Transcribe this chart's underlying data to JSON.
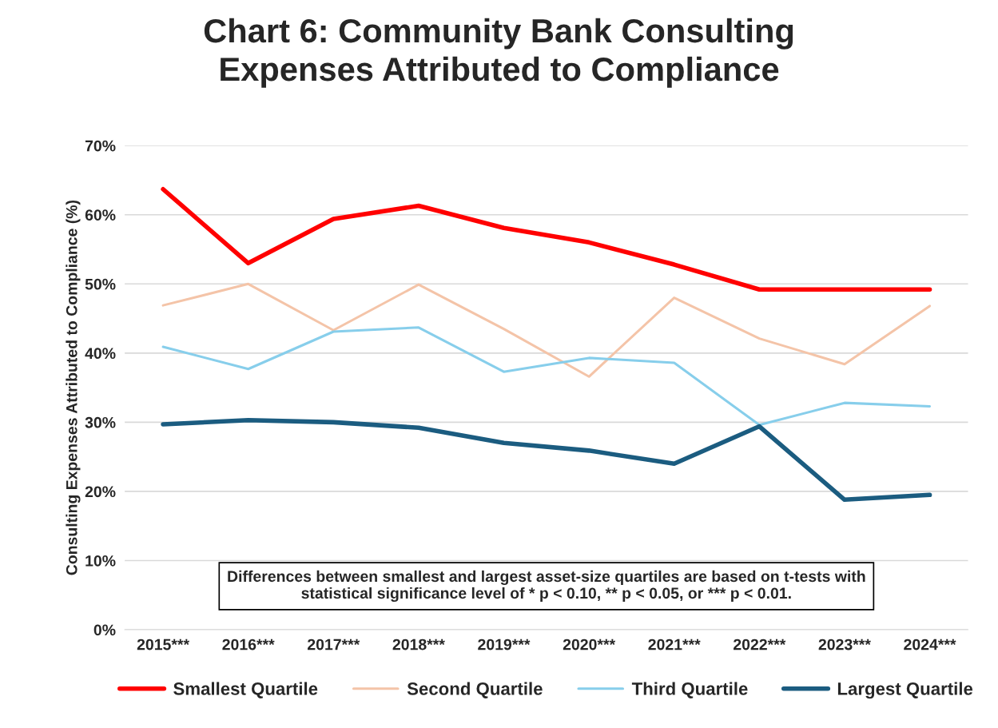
{
  "chart_data": {
    "type": "line",
    "title": "Chart 6: Community Bank Consulting\nExpenses Attributed to Compliance",
    "ylabel": "Consulting Expenses Attributed to Compliance (%)",
    "categories": [
      "2015***",
      "2016***",
      "2017***",
      "2018***",
      "2019***",
      "2020***",
      "2021***",
      "2022***",
      "2023***",
      "2024***"
    ],
    "series": [
      {
        "name": "Smallest Quartile",
        "color": "#ff0000",
        "values": [
          63.7,
          53.0,
          59.4,
          61.3,
          58.1,
          56.0,
          52.8,
          49.2,
          49.2,
          49.2
        ]
      },
      {
        "name": "Second Quartile",
        "color": "#f4c4a8",
        "values": [
          46.9,
          50.0,
          43.3,
          49.9,
          43.5,
          36.6,
          48.0,
          42.1,
          38.4,
          46.8
        ]
      },
      {
        "name": "Third Quartile",
        "color": "#87ceeb",
        "values": [
          40.9,
          37.7,
          43.1,
          43.7,
          37.3,
          39.3,
          38.6,
          29.6,
          32.8,
          32.3
        ]
      },
      {
        "name": "Largest Quartile",
        "color": "#1b5c80",
        "values": [
          29.7,
          30.3,
          30.0,
          29.2,
          27.0,
          25.9,
          24.0,
          29.4,
          18.8,
          19.5
        ]
      }
    ],
    "ylim": [
      0,
      70
    ],
    "yticks": [
      {
        "value": 0,
        "label": "0%"
      },
      {
        "value": 10,
        "label": "10%"
      },
      {
        "value": 20,
        "label": "20%"
      },
      {
        "value": 30,
        "label": "30%"
      },
      {
        "value": 40,
        "label": "40%"
      },
      {
        "value": 50,
        "label": "50%"
      },
      {
        "value": 60,
        "label": "60%"
      },
      {
        "value": 70,
        "label": "70%"
      }
    ],
    "grid": "y",
    "legend": "bottom",
    "marker": "none",
    "line_style": "solid",
    "annotations": [
      "Differences between smallest and largest asset-size quartiles are based on t-tests with\nstatistical significance level of * p < 0.10, ** p < 0.05, or *** p < 0.01."
    ]
  }
}
